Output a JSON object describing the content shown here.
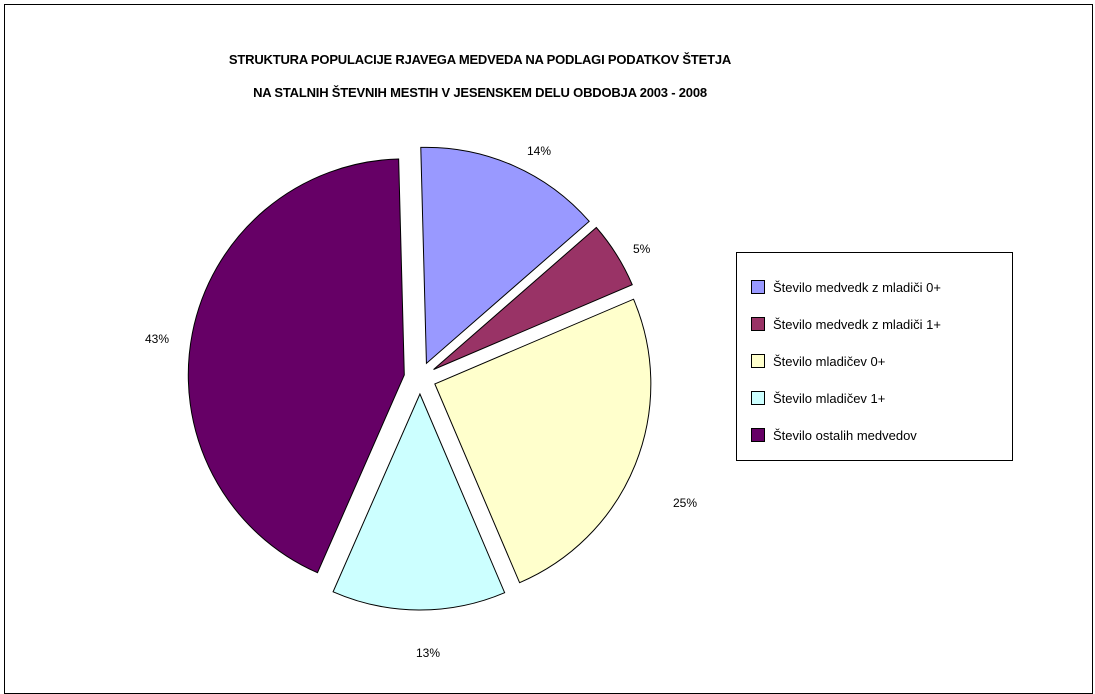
{
  "chart_data": {
    "type": "pie",
    "title": "STRUKTURA POPULACIJE RJAVEGA MEDVEDA NA PODLAGI PODATKOV ŠTETJA",
    "subtitle": "NA STALNIH ŠTEVNIH MESTIH V JESENSKEM DELU OBDOBJA 2003 - 2008",
    "slices": [
      {
        "name": "Število medvedk z mladiči 0+",
        "value": 14,
        "label": "14%",
        "color": "#9999ff"
      },
      {
        "name": "Število medvedk z mladiči 1+",
        "value": 5,
        "label": "5%",
        "color": "#993366"
      },
      {
        "name": "Število mladičev 0+",
        "value": 25,
        "label": "25%",
        "color": "#ffffcc"
      },
      {
        "name": "Število mladičev 1+",
        "value": 13,
        "label": "13%",
        "color": "#ccffff"
      },
      {
        "name": "Število ostalih medvedov",
        "value": 43,
        "label": "43%",
        "color": "#660066"
      }
    ],
    "exploded": true,
    "legend_position": "right"
  }
}
